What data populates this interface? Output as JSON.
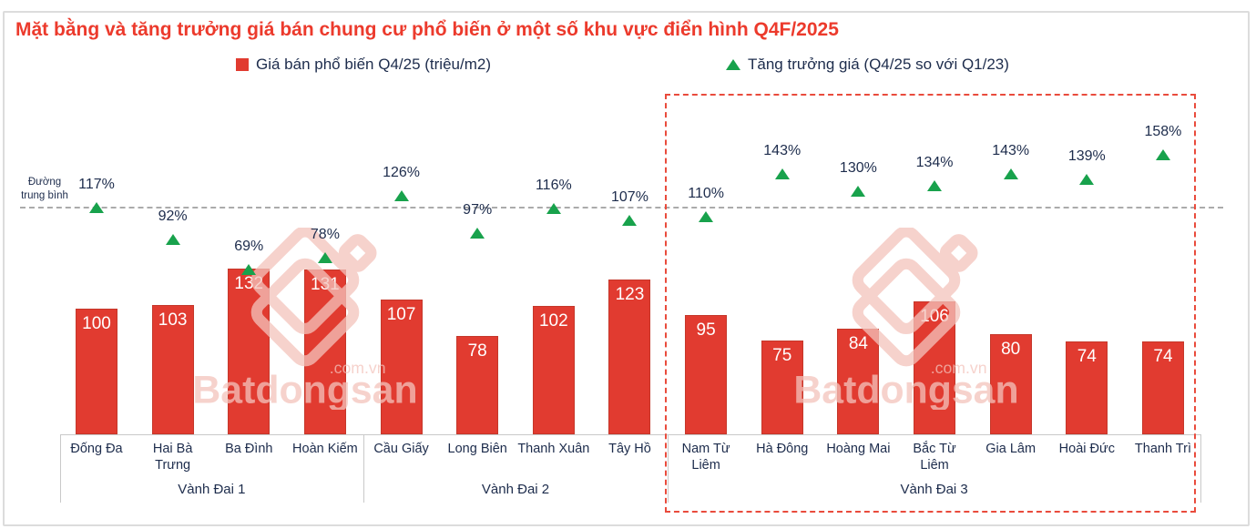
{
  "title": "Mặt bằng và tăng trưởng giá bán chung cư phổ biến ở một số khu vực điển hình Q4F/2025",
  "legend": {
    "price_label": "Giá bán phổ biến Q4/25 (triệu/m2)",
    "growth_label": "Tăng trưởng giá (Q4/25 so với Q1/23)"
  },
  "watermark": {
    "brand": "Batdongsan",
    "suffix": ".com.vn"
  },
  "colors": {
    "title_red": "#EC3A2C",
    "bar_red": "#E13B30",
    "growth_green": "#18A24C",
    "text_navy": "#1D2C4C",
    "average_line_gray": "#ABABAB",
    "highlight_red": "#E94B3C",
    "watermark_pink": "#F4C3BC"
  },
  "chart_data": {
    "type": "bar",
    "title": "Mặt bằng và tăng trưởng giá bán chung cư phổ biến ở một số khu vực điển hình Q4F/2025",
    "categories": [
      {
        "name": "Đống Đa",
        "lines": [
          "Đống Đa"
        ]
      },
      {
        "name": "Hai Bà Trưng",
        "lines": [
          "Hai Bà",
          "Trưng"
        ]
      },
      {
        "name": "Ba Đình",
        "lines": [
          "Ba Đình"
        ]
      },
      {
        "name": "Hoàn Kiếm",
        "lines": [
          "Hoàn Kiếm"
        ]
      },
      {
        "name": "Cầu Giấy",
        "lines": [
          "Cầu Giấy"
        ]
      },
      {
        "name": "Long Biên",
        "lines": [
          "Long Biên"
        ]
      },
      {
        "name": "Thanh Xuân",
        "lines": [
          "Thanh Xuân"
        ]
      },
      {
        "name": "Tây Hồ",
        "lines": [
          "Tây Hồ"
        ]
      },
      {
        "name": "Nam Từ Liêm",
        "lines": [
          "Nam Từ",
          "Liêm"
        ]
      },
      {
        "name": "Hà Đông",
        "lines": [
          "Hà Đông"
        ]
      },
      {
        "name": "Hoàng Mai",
        "lines": [
          "Hoàng Mai"
        ]
      },
      {
        "name": "Bắc Từ Liêm",
        "lines": [
          "Bắc Từ",
          "Liêm"
        ]
      },
      {
        "name": "Gia Lâm",
        "lines": [
          "Gia Lâm"
        ]
      },
      {
        "name": "Hoài Đức",
        "lines": [
          "Hoài Đức"
        ]
      },
      {
        "name": "Thanh Trì",
        "lines": [
          "Thanh Trì"
        ]
      }
    ],
    "groups": [
      {
        "label": "Vành Đai 1",
        "count": 4,
        "highlighted": false
      },
      {
        "label": "Vành Đai 2",
        "count": 4,
        "highlighted": false
      },
      {
        "label": "Vành Đai 3",
        "count": 7,
        "highlighted": true
      }
    ],
    "series": [
      {
        "name": "Giá bán phổ biến Q4/25 (triệu/m2)",
        "mark": "bar",
        "color": "#E13B30",
        "values": [
          100,
          103,
          132,
          131,
          107,
          78,
          102,
          123,
          95,
          75,
          84,
          106,
          80,
          74,
          74
        ]
      },
      {
        "name": "Tăng trưởng giá (Q4/25 so với Q1/23)",
        "mark": "triangle",
        "color": "#18A24C",
        "unit": "%",
        "values": [
          117,
          92,
          69,
          78,
          126,
          97,
          116,
          107,
          110,
          143,
          130,
          134,
          143,
          139,
          158
        ]
      }
    ],
    "average_line": {
      "label": "Đường\ntrung bình",
      "value": 117,
      "unit": "%",
      "style": "dashed-gray"
    },
    "highlight_region": {
      "group": "Vành Đai 3",
      "style": "red-dashed-box"
    },
    "layout_hints": {
      "value_axis_visible": false,
      "data_labels": "inside bar top (price), above triangle (growth)",
      "legend_position": "top"
    }
  }
}
